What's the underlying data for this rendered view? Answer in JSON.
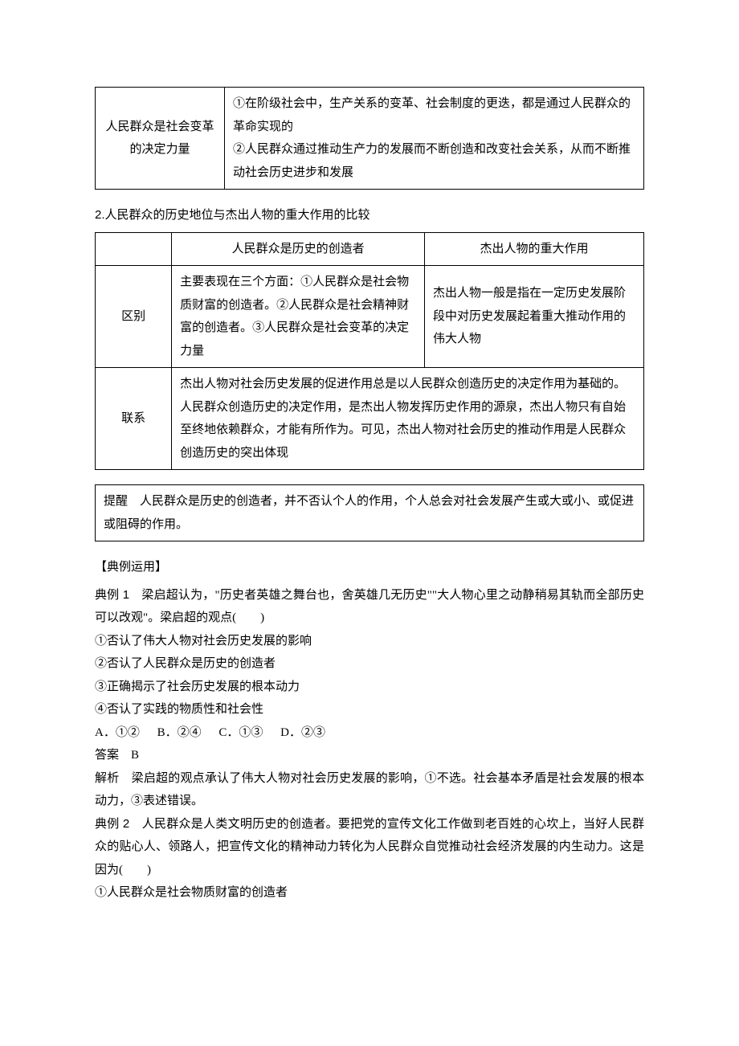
{
  "table1": {
    "row_label": "人民群众是社会变革的决定力量",
    "right": "①在阶级社会中，生产关系的变革、社会制度的更迭，都是通过人民群众的革命实现的\n②人民群众通过推动生产力的发展而不断创造和改变社会关系，从而不断推动社会历史进步和发展"
  },
  "section2": {
    "num": "2.",
    "title": "人民群众的历史地位与杰出人物的重大作用的比较"
  },
  "table2": {
    "head_left": "人民群众是历史的创造者",
    "head_right": "杰出人物的重大作用",
    "r1_label": "区别",
    "r1_left": "主要表现在三个方面：①人民群众是社会物质财富的创造者。②人民群众是社会精神财富的创造者。③人民群众是社会变革的决定力量",
    "r1_right": "杰出人物一般是指在一定历史发展阶段中对历史发展起着重大推动作用的伟大人物",
    "r2_label": "联系",
    "r2_text": "杰出人物对社会历史发展的促进作用总是以人民群众创造历史的决定作用为基础的。人民群众创造历史的决定作用，是杰出人物发挥历史作用的源泉，杰出人物只有自始至终地依赖群众，才能有所作为。可见，杰出人物对社会历史的推动作用是人民群众创造历史的突出体现"
  },
  "tip": {
    "label": "提醒",
    "text": "　人民群众是历史的创造者，并不否认个人的作用，个人总会对社会发展产生或大或小、或促进或阻碍的作用。"
  },
  "examples_hdr": "【典例运用】",
  "ex1": {
    "label": "典例 1",
    "stem": "　梁启超认为，\"历史者英雄之舞台也，舍英雄几无历史\"\"大人物心里之动静稍易其轨而全部历史可以改观\"。梁启超的观点(　　)",
    "c1": "①否认了伟大人物对社会历史发展的影响",
    "c2": "②否认了人民群众是历史的创造者",
    "c3": "③正确揭示了社会历史发展的根本动力",
    "c4": "④否认了实践的物质性和社会性",
    "optA": "A．①②",
    "optB": "B．②④",
    "optC": "C．①③",
    "optD": "D．②③",
    "ans_label": "答案",
    "ans": "　B",
    "expl_label": "解析",
    "expl": "　梁启超的观点承认了伟大人物对社会历史发展的影响，①不选。社会基本矛盾是社会发展的根本动力，③表述错误。"
  },
  "ex2": {
    "label": "典例 2",
    "stem": "　人民群众是人类文明历史的创造者。要把党的宣传文化工作做到老百姓的心坎上，当好人民群众的贴心人、领路人，把宣传文化的精神动力转化为人民群众自觉推动社会经济发展的内生动力。这是因为(　　)",
    "c1": "①人民群众是社会物质财富的创造者"
  }
}
